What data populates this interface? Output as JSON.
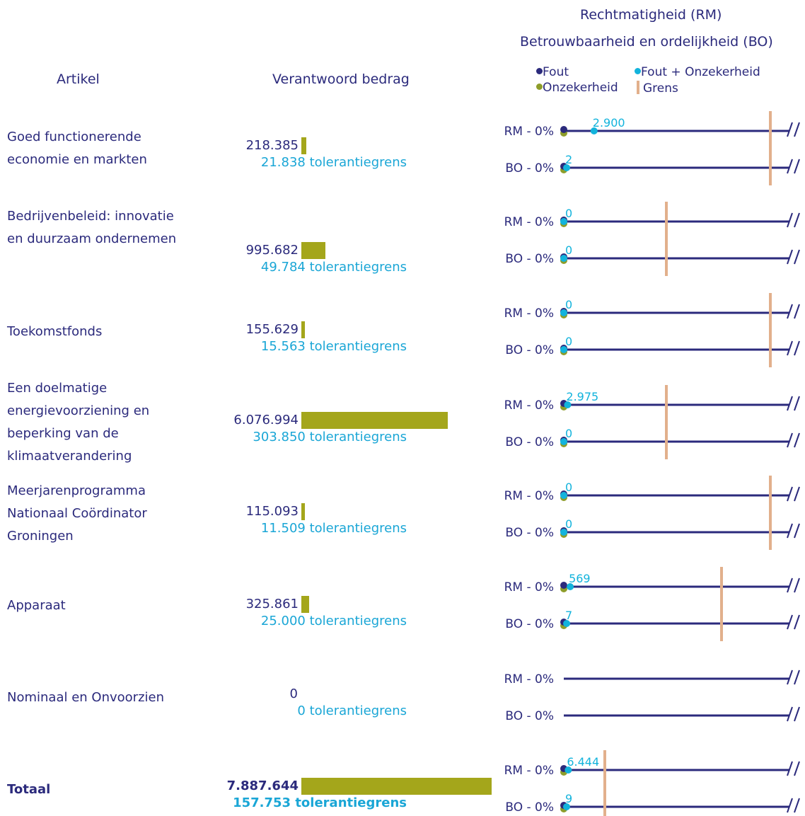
{
  "header": {
    "title_rm": "Rechtmatigheid (RM)",
    "title_bo": "Betrouwbaarheid en ordelijkheid (BO)",
    "col_artikel": "Artikel",
    "col_bedrag": "Verantwoord bedrag"
  },
  "legend": {
    "fout": "Fout",
    "fout_onzekerheid": "Fout + Onzekerheid",
    "onzekerheid": "Onzekerheid",
    "grens": "Grens"
  },
  "colors": {
    "fout": "#2b2a7c",
    "fout_onzekerheid": "#12b3dc",
    "onzekerheid": "#8e9d2a",
    "grens": "#e2b08c",
    "bar": "#a4a61b",
    "line": "#2b2a7c",
    "tolerance_text": "#1aa6d6"
  },
  "chart_data": {
    "type": "bar",
    "rows": [
      {
        "artikel": "Goed functionerende economie en markten",
        "amount": 218385,
        "amount_label": "218.385",
        "tolerance_label": "21.838 tolerantiegrens",
        "rm": {
          "label": "RM - 0%",
          "value_label": "2.900",
          "fout_onz": 2900,
          "grens": 21838
        },
        "bo": {
          "label": "BO - 0%",
          "value_label": "2",
          "fout_onz": 2,
          "grens": 21838
        }
      },
      {
        "artikel": "Bedrijvenbeleid: innovatie en duurzaam ondernemen",
        "amount": 995682,
        "amount_label": "995.682",
        "tolerance_label": "49.784 tolerantiegrens",
        "rm": {
          "label": "RM - 0%",
          "value_label": "0",
          "fout_onz": 0,
          "grens": 49784
        },
        "bo": {
          "label": "BO - 0%",
          "value_label": "0",
          "fout_onz": 0,
          "grens": 49784
        }
      },
      {
        "artikel": "Toekomstfonds",
        "amount": 155629,
        "amount_label": "155.629",
        "tolerance_label": "15.563 tolerantiegrens",
        "rm": {
          "label": "RM - 0%",
          "value_label": "0",
          "fout_onz": 0,
          "grens": 15563
        },
        "bo": {
          "label": "BO - 0%",
          "value_label": "0",
          "fout_onz": 0,
          "grens": 15563
        }
      },
      {
        "artikel": "Een doelmatige energievoorziening en beperking van de klimaatverandering",
        "amount": 6076994,
        "amount_label": "6.076.994",
        "tolerance_label": "303.850 tolerantiegrens",
        "rm": {
          "label": "RM - 0%",
          "value_label": "2.975",
          "fout_onz": 2975,
          "grens": 303850
        },
        "bo": {
          "label": "BO - 0%",
          "value_label": "0",
          "fout_onz": 0,
          "grens": 303850
        }
      },
      {
        "artikel": "Meerjarenprogramma Nationaal Coördinator Groningen",
        "amount": 115093,
        "amount_label": "115.093",
        "tolerance_label": "11.509 tolerantiegrens",
        "rm": {
          "label": "RM - 0%",
          "value_label": "0",
          "fout_onz": 0,
          "grens": 11509
        },
        "bo": {
          "label": "BO - 0%",
          "value_label": "0",
          "fout_onz": 0,
          "grens": 11509
        }
      },
      {
        "artikel": "Apparaat",
        "amount": 325861,
        "amount_label": "325.861",
        "tolerance_label": "25.000 tolerantiegrens",
        "rm": {
          "label": "RM - 0%",
          "value_label": "569",
          "fout_onz": 569,
          "grens": 25000
        },
        "bo": {
          "label": "BO - 0%",
          "value_label": "7",
          "fout_onz": 7,
          "grens": 25000
        }
      },
      {
        "artikel": "Nominaal en Onvoorzien",
        "amount": 0,
        "amount_label": "0",
        "tolerance_label": "0 tolerantiegrens",
        "rm": {
          "label": "RM - 0%",
          "value_label": "",
          "fout_onz": null,
          "grens": null
        },
        "bo": {
          "label": "BO - 0%",
          "value_label": "",
          "fout_onz": null,
          "grens": null
        }
      },
      {
        "artikel": "Totaal",
        "amount": 7887644,
        "amount_label": "7.887.644",
        "tolerance_label": "157.753 tolerantiegrens",
        "bold": true,
        "rm": {
          "label": "RM - 0%",
          "value_label": "6.444",
          "fout_onz": 6444,
          "grens": 157753
        },
        "bo": {
          "label": "BO - 0%",
          "value_label": "9",
          "fout_onz": 9,
          "grens": 157753
        }
      }
    ]
  }
}
